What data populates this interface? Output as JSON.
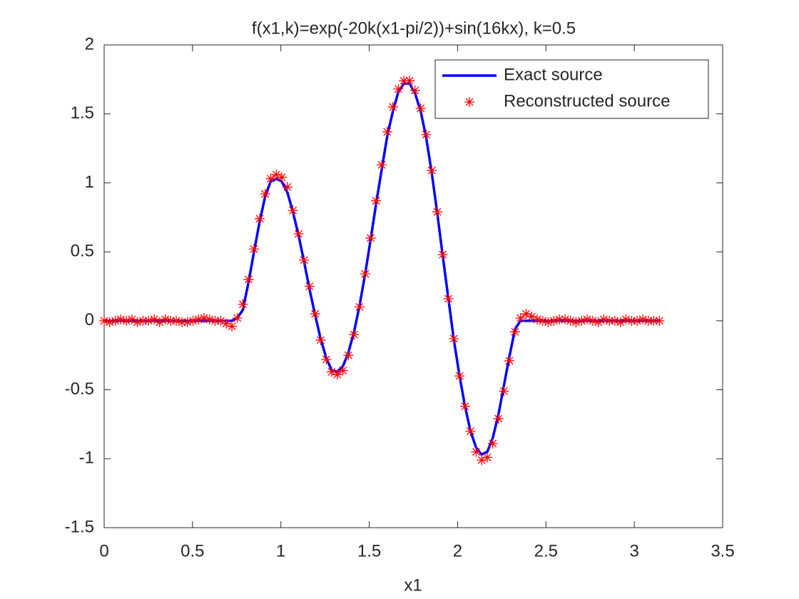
{
  "chart_data": {
    "type": "line",
    "title": "f(x1,k)=exp(-20k(x1-pi/2))+sin(16kx),   k=0.5",
    "x_label": "x1",
    "x": [
      0,
      0.031,
      0.063,
      0.094,
      0.126,
      0.157,
      0.188,
      0.22,
      0.251,
      0.283,
      0.314,
      0.346,
      0.377,
      0.408,
      0.44,
      0.471,
      0.503,
      0.534,
      0.565,
      0.597,
      0.628,
      0.66,
      0.691,
      0.723,
      0.754,
      0.785,
      0.817,
      0.848,
      0.88,
      0.911,
      0.942,
      0.974,
      1.005,
      1.037,
      1.068,
      1.1,
      1.131,
      1.162,
      1.194,
      1.225,
      1.257,
      1.288,
      1.319,
      1.351,
      1.382,
      1.414,
      1.445,
      1.477,
      1.508,
      1.539,
      1.571,
      1.602,
      1.634,
      1.665,
      1.696,
      1.728,
      1.759,
      1.791,
      1.822,
      1.854,
      1.885,
      1.916,
      1.948,
      1.979,
      2.011,
      2.042,
      2.073,
      2.105,
      2.136,
      2.168,
      2.199,
      2.231,
      2.262,
      2.293,
      2.325,
      2.356,
      2.388,
      2.419,
      2.45,
      2.482,
      2.513,
      2.545,
      2.576,
      2.608,
      2.639,
      2.67,
      2.702,
      2.733,
      2.765,
      2.796,
      2.827,
      2.859,
      2.89,
      2.922,
      2.953,
      2.985,
      3.016,
      3.048,
      3.079,
      3.11,
      3.142
    ],
    "series": [
      {
        "name": "Exact source",
        "color": "#0000ff",
        "style": "line",
        "values": [
          0,
          0,
          0,
          0,
          0,
          0,
          0,
          0,
          0,
          0,
          0,
          0,
          0,
          0,
          0,
          0,
          0,
          0,
          0,
          0,
          0,
          0,
          0,
          0,
          0.02,
          0.08,
          0.28,
          0.5,
          0.72,
          0.9,
          1.01,
          1.03,
          1.01,
          0.93,
          0.79,
          0.62,
          0.43,
          0.23,
          0.04,
          -0.13,
          -0.27,
          -0.36,
          -0.37,
          -0.33,
          -0.23,
          -0.08,
          0.11,
          0.34,
          0.59,
          0.85,
          1.1,
          1.34,
          1.52,
          1.66,
          1.72,
          1.72,
          1.65,
          1.52,
          1.33,
          1.07,
          0.78,
          0.47,
          0.16,
          -0.14,
          -0.4,
          -0.62,
          -0.8,
          -0.92,
          -0.97,
          -0.95,
          -0.85,
          -0.68,
          -0.47,
          -0.26,
          -0.06,
          0,
          0,
          0,
          0,
          0,
          0,
          0,
          0,
          0,
          0,
          0,
          0,
          0,
          0,
          0,
          0,
          0,
          0,
          0,
          0,
          0,
          0,
          0,
          0,
          0,
          0
        ]
      },
      {
        "name": "Reconstructed source",
        "color": "#ff0000",
        "style": "marker",
        "values": [
          0,
          -0.01,
          0,
          0.01,
          0,
          0.01,
          -0.01,
          0,
          0,
          0.01,
          -0.01,
          0.01,
          0,
          0,
          -0.01,
          -0.01,
          0,
          0.01,
          0.02,
          0.01,
          0,
          0,
          -0.02,
          -0.04,
          0.02,
          0.12,
          0.3,
          0.52,
          0.74,
          0.92,
          1.03,
          1.06,
          1.04,
          0.97,
          0.8,
          0.63,
          0.44,
          0.25,
          0.05,
          -0.14,
          -0.28,
          -0.37,
          -0.39,
          -0.36,
          -0.25,
          -0.1,
          0.1,
          0.34,
          0.6,
          0.87,
          1.13,
          1.37,
          1.55,
          1.68,
          1.74,
          1.74,
          1.67,
          1.54,
          1.35,
          1.09,
          0.79,
          0.48,
          0.16,
          -0.13,
          -0.4,
          -0.62,
          -0.8,
          -0.95,
          -1.01,
          -0.99,
          -0.89,
          -0.71,
          -0.51,
          -0.29,
          -0.08,
          0.02,
          0.05,
          0.03,
          0.01,
          0,
          -0.01,
          0,
          0.01,
          0.01,
          0,
          -0.01,
          0,
          0.01,
          0,
          -0.01,
          0.01,
          0,
          0,
          -0.01,
          0.01,
          0,
          0,
          0.01,
          0,
          0,
          0
        ]
      }
    ],
    "xlim": [
      0,
      3.5
    ],
    "xticks": [
      0,
      0.5,
      1,
      1.5,
      2,
      2.5,
      3,
      3.5
    ],
    "ylim": [
      -1.5,
      2
    ],
    "yticks": [
      -1.5,
      -1,
      -0.5,
      0,
      0.5,
      1,
      1.5,
      2
    ],
    "legend": "northeast"
  }
}
